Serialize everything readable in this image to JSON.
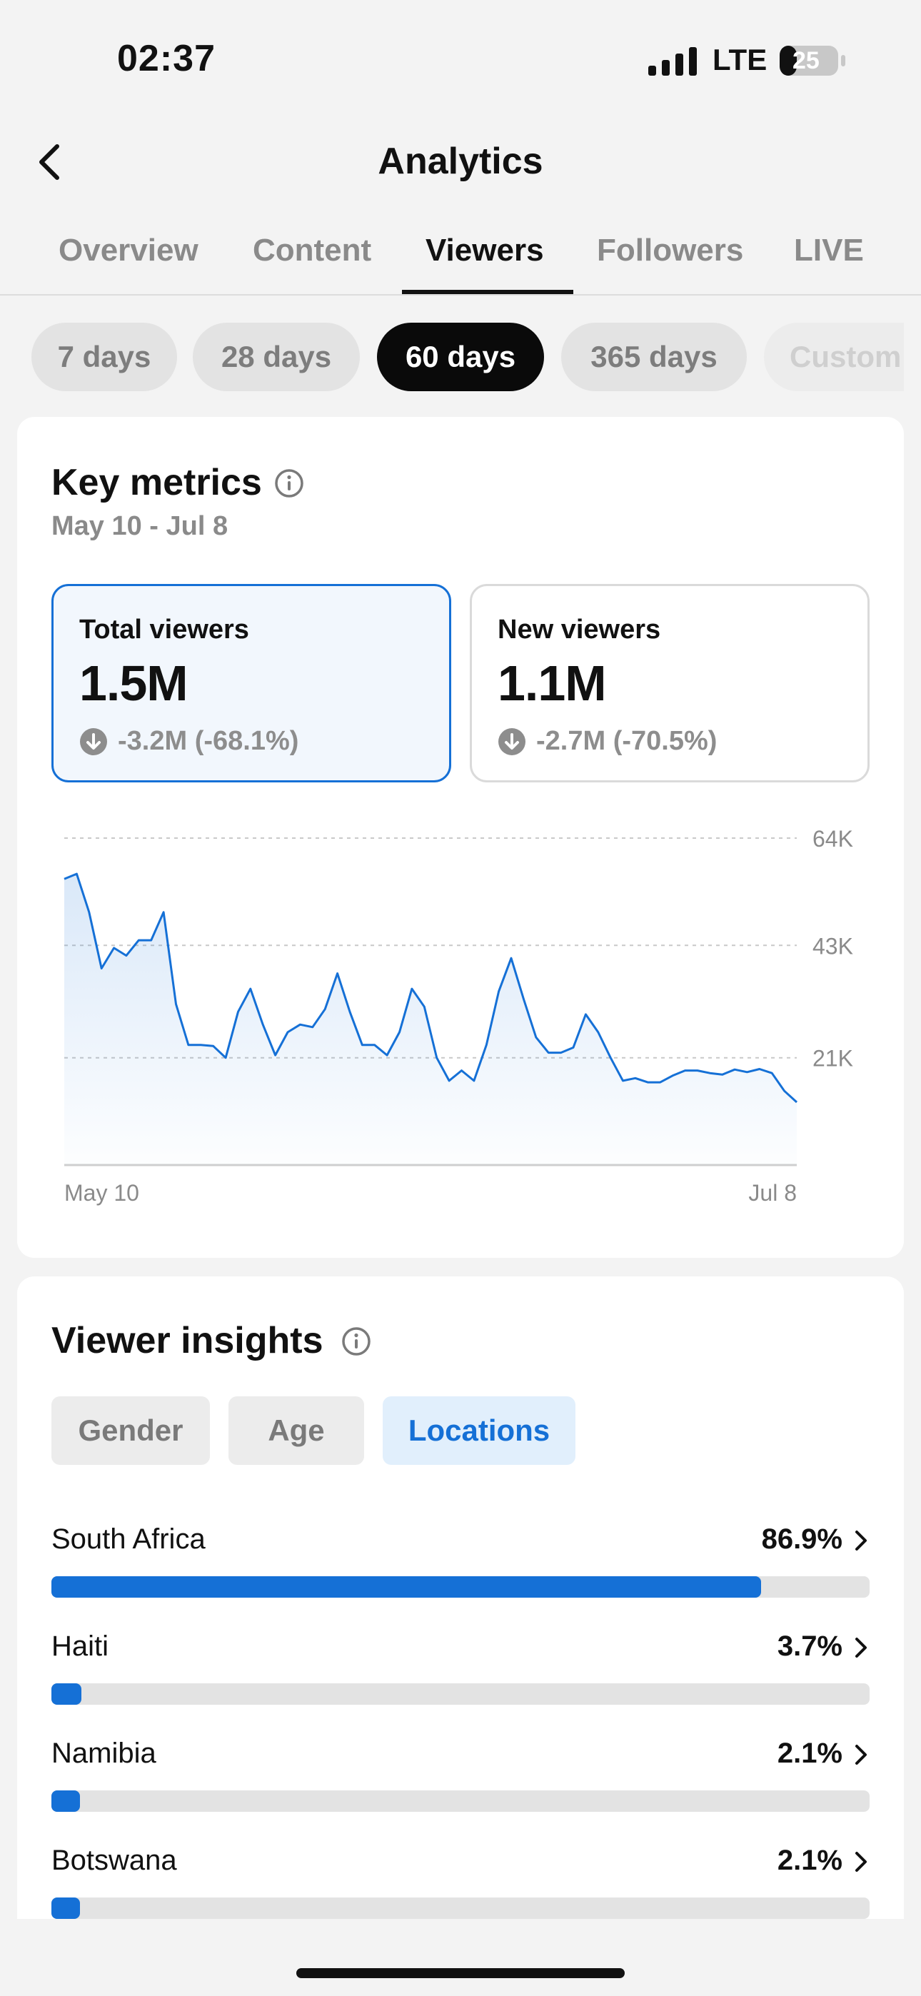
{
  "status_bar": {
    "time": "02:37",
    "network": "LTE",
    "battery": "25"
  },
  "header": {
    "title": "Analytics"
  },
  "tabs": [
    {
      "label": "Overview",
      "active": false
    },
    {
      "label": "Content",
      "active": false
    },
    {
      "label": "Viewers",
      "active": true
    },
    {
      "label": "Followers",
      "active": false
    },
    {
      "label": "LIVE",
      "active": false
    }
  ],
  "periods": [
    {
      "label": "7 days",
      "active": false
    },
    {
      "label": "28 days",
      "active": false
    },
    {
      "label": "60 days",
      "active": true
    },
    {
      "label": "365 days",
      "active": false
    },
    {
      "label": "Custom",
      "active": false
    }
  ],
  "key_metrics": {
    "title": "Key metrics",
    "date_range": "May 10 - Jul 8",
    "metrics": [
      {
        "label": "Total viewers",
        "value": "1.5M",
        "change": "-3.2M (-68.1%)",
        "selected": true
      },
      {
        "label": "New viewers",
        "value": "1.1M",
        "change": "-2.7M (-70.5%)",
        "selected": false
      }
    ]
  },
  "chart_data": {
    "type": "area",
    "series": [
      {
        "values": [
          56000,
          57000,
          49500,
          38500,
          42500,
          41000,
          44000,
          44000,
          49500,
          31500,
          23500,
          23500,
          23300,
          21000,
          30000,
          34500,
          27500,
          21500,
          26000,
          27500,
          27000,
          30500,
          37500,
          30000,
          23500,
          23500,
          21500,
          26000,
          34500,
          31000,
          21000,
          16500,
          18500,
          16500,
          23500,
          34000,
          40500,
          32500,
          25000,
          22000,
          22000,
          23000,
          29500,
          26000,
          21000,
          16500,
          17000,
          16200,
          16200,
          17500,
          18500,
          18500,
          18000,
          17700,
          18700,
          18200,
          18800,
          18000,
          14500,
          12300
        ]
      }
    ],
    "x_tick_labels": [
      "May 10",
      "Jul 8"
    ],
    "y_ticks": [
      21000,
      43000,
      64000
    ],
    "y_tick_labels": [
      "21K",
      "43K",
      "64K"
    ],
    "ylim": [
      0,
      64000
    ],
    "grid": true,
    "color": "#1570d6"
  },
  "insights": {
    "title": "Viewer insights",
    "tabs": [
      {
        "label": "Gender",
        "active": false
      },
      {
        "label": "Age",
        "active": false
      },
      {
        "label": "Locations",
        "active": true
      }
    ],
    "locations": [
      {
        "name": "South Africa",
        "pct_label": "86.9%",
        "pct": 86.9
      },
      {
        "name": "Haiti",
        "pct_label": "3.7%",
        "pct": 3.7
      },
      {
        "name": "Namibia",
        "pct_label": "2.1%",
        "pct": 2.1
      },
      {
        "name": "Botswana",
        "pct_label": "2.1%",
        "pct": 2.1
      }
    ]
  },
  "colors": {
    "accent": "#1570d6",
    "background": "#f3f3f3"
  }
}
